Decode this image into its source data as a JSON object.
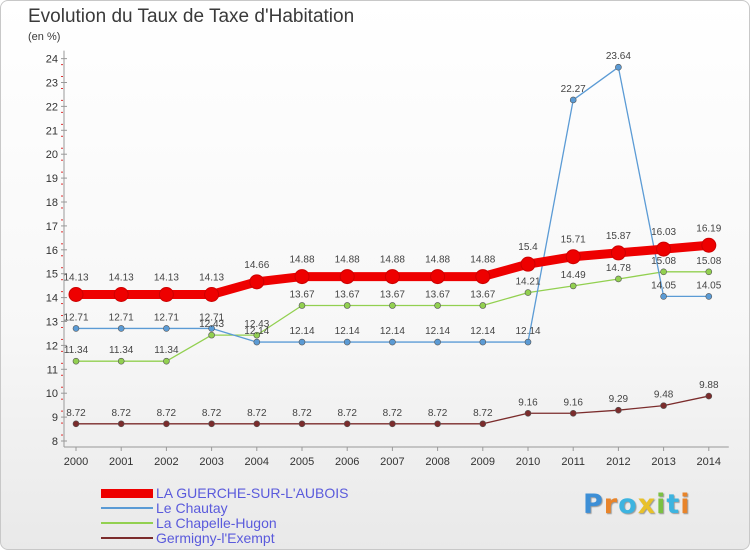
{
  "title": "Evolution du Taux de Taxe d'Habitation",
  "subtitle": "(en %)",
  "brand": {
    "text": "Proxiti",
    "letter_colors": [
      "#3d8fd6",
      "#e8842a",
      "#3db4e0",
      "#e8c12a",
      "#7bc043",
      "#3db4e0",
      "#e8842a"
    ]
  },
  "chart_data": {
    "type": "line",
    "title": "Evolution du Taux de Taxe d'Habitation",
    "ylabel": "(en %)",
    "xlabel": "",
    "ylim": [
      8,
      24
    ],
    "yticks": [
      8,
      9,
      10,
      11,
      12,
      13,
      14,
      15,
      16,
      17,
      18,
      19,
      20,
      21,
      22,
      23,
      24
    ],
    "grid": false,
    "legend_position": "bottom-left",
    "x": [
      "2000",
      "2001",
      "2002",
      "2003",
      "2004",
      "2005",
      "2006",
      "2007",
      "2008",
      "2009",
      "2010",
      "2011",
      "2012",
      "2013",
      "2014"
    ],
    "series": [
      {
        "name": "LA GUERCHE-SUR-L'AUBOIS",
        "color": "#ee0000",
        "values": [
          14.13,
          14.13,
          14.13,
          14.13,
          14.66,
          14.88,
          14.88,
          14.88,
          14.88,
          14.88,
          15.4,
          15.71,
          15.87,
          16.03,
          16.19
        ],
        "labels": [
          "14.13",
          "14.13",
          "14.13",
          "14.13",
          "14.66",
          "14.88",
          "14.88",
          "14.88",
          "14.88",
          "14.88",
          "15.4",
          "15.71",
          "15.87",
          "16.03",
          "16.19"
        ]
      },
      {
        "name": "Le Chautay",
        "color": "#5b9bd5",
        "values": [
          12.71,
          12.71,
          12.71,
          12.71,
          12.14,
          12.14,
          12.14,
          12.14,
          12.14,
          12.14,
          12.14,
          22.27,
          23.64,
          14.05,
          14.05
        ],
        "labels": [
          "12.71",
          "12.71",
          "12.71",
          "12.71",
          "12.14",
          "12.14",
          "12.14",
          "12.14",
          "12.14",
          "12.14",
          "12.14",
          "22.27",
          "23.64",
          "14.05",
          "14.05"
        ]
      },
      {
        "name": "La Chapelle-Hugon",
        "color": "#92d050",
        "values": [
          11.34,
          11.34,
          11.34,
          12.43,
          12.43,
          13.67,
          13.67,
          13.67,
          13.67,
          13.67,
          14.21,
          14.49,
          14.78,
          15.08,
          15.08
        ],
        "labels": [
          "11.34",
          "11.34",
          "11.34",
          "12.43",
          "12.43",
          "13.67",
          "13.67",
          "13.67",
          "13.67",
          "13.67",
          "14.21",
          "14.49",
          "14.78",
          "15.08",
          "15.08"
        ]
      },
      {
        "name": "Germigny-l'Exempt",
        "color": "#7b2c2c",
        "values": [
          8.72,
          8.72,
          8.72,
          8.72,
          8.72,
          8.72,
          8.72,
          8.72,
          8.72,
          8.72,
          9.16,
          9.16,
          9.29,
          9.48,
          9.88
        ],
        "labels": [
          "8.72",
          "8.72",
          "8.72",
          "8.72",
          "8.72",
          "8.72",
          "8.72",
          "8.72",
          "8.72",
          "8.72",
          "9.16",
          "9.16",
          "9.29",
          "9.48",
          "9.88"
        ]
      }
    ]
  }
}
